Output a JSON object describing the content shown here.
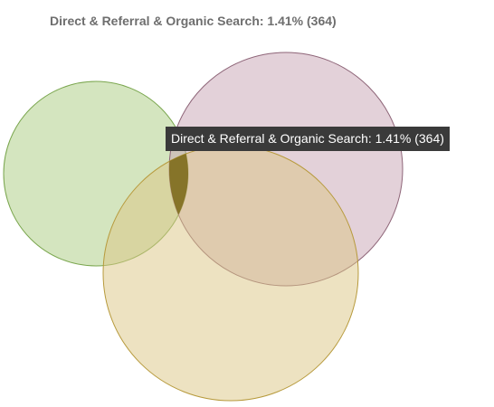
{
  "chart_data": {
    "type": "venn",
    "title": "Direct & Referral & Organic Search: 1.41% (364)",
    "sets": [
      {
        "name": "Direct",
        "color": "#a9cc7f",
        "stroke": "#7aa64e"
      },
      {
        "name": "Referral",
        "color": "#c8a3b3",
        "stroke": "#8e6578"
      },
      {
        "name": "Organic Search",
        "color": "#dcc683",
        "stroke": "#b79a3c"
      }
    ],
    "intersection_color": "#7d6a1c",
    "highlighted": {
      "sets": [
        "Direct",
        "Referral",
        "Organic Search"
      ],
      "percent": 1.41,
      "count": 364,
      "label": "Direct & Referral & Organic Search: 1.41% (364)"
    }
  }
}
